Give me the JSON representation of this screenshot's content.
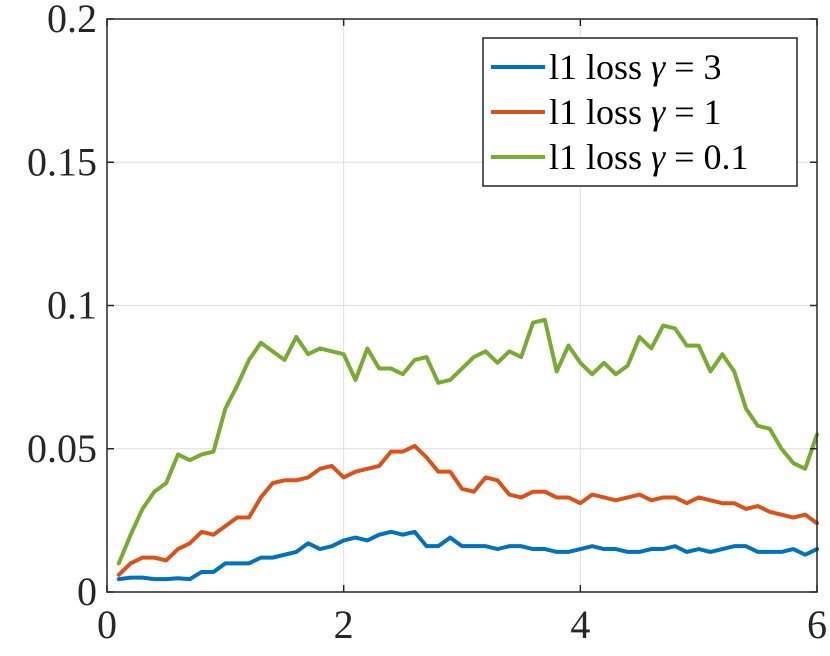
{
  "chart_data": {
    "type": "line",
    "title": "",
    "xlabel": "",
    "ylabel": "",
    "xlim": [
      0,
      6
    ],
    "ylim": [
      0,
      0.2
    ],
    "grid": true,
    "legend_position": "top-right",
    "x_ticks": [
      "0",
      "2",
      "4",
      "6"
    ],
    "y_ticks": [
      "0",
      "0.05",
      "0.1",
      "0.15",
      "0.2"
    ],
    "x": [
      0.1,
      0.2,
      0.3,
      0.4,
      0.5,
      0.6,
      0.7,
      0.8,
      0.9,
      1.0,
      1.1,
      1.2,
      1.3,
      1.4,
      1.5,
      1.6,
      1.7,
      1.8,
      1.9,
      2.0,
      2.1,
      2.2,
      2.3,
      2.4,
      2.5,
      2.6,
      2.7,
      2.8,
      2.9,
      3.0,
      3.1,
      3.2,
      3.3,
      3.4,
      3.5,
      3.6,
      3.7,
      3.8,
      3.9,
      4.0,
      4.1,
      4.2,
      4.3,
      4.4,
      4.5,
      4.6,
      4.7,
      4.8,
      4.9,
      5.0,
      5.1,
      5.2,
      5.3,
      5.4,
      5.5,
      5.6,
      5.7,
      5.8,
      5.9,
      6.0
    ],
    "series": [
      {
        "label_prefix": "l1 loss ",
        "label_symbol": "γ",
        "label_suffix": " = 3",
        "color": "#0072BD",
        "values": [
          0.0045,
          0.005,
          0.005,
          0.0045,
          0.0045,
          0.0048,
          0.0045,
          0.007,
          0.007,
          0.01,
          0.01,
          0.01,
          0.012,
          0.012,
          0.013,
          0.014,
          0.017,
          0.015,
          0.016,
          0.018,
          0.019,
          0.018,
          0.02,
          0.021,
          0.02,
          0.021,
          0.016,
          0.016,
          0.019,
          0.016,
          0.016,
          0.016,
          0.015,
          0.016,
          0.016,
          0.015,
          0.015,
          0.014,
          0.014,
          0.015,
          0.016,
          0.015,
          0.015,
          0.014,
          0.014,
          0.015,
          0.015,
          0.016,
          0.014,
          0.015,
          0.014,
          0.015,
          0.016,
          0.016,
          0.014,
          0.014,
          0.014,
          0.015,
          0.013,
          0.015
        ]
      },
      {
        "label_prefix": "l1 loss ",
        "label_symbol": "γ",
        "label_suffix": " = 1",
        "color": "#D95319",
        "values": [
          0.006,
          0.01,
          0.012,
          0.012,
          0.011,
          0.015,
          0.017,
          0.021,
          0.02,
          0.023,
          0.026,
          0.026,
          0.033,
          0.038,
          0.039,
          0.039,
          0.04,
          0.043,
          0.044,
          0.04,
          0.042,
          0.043,
          0.044,
          0.049,
          0.049,
          0.051,
          0.047,
          0.042,
          0.042,
          0.036,
          0.035,
          0.04,
          0.039,
          0.034,
          0.033,
          0.035,
          0.035,
          0.033,
          0.033,
          0.031,
          0.034,
          0.033,
          0.032,
          0.033,
          0.034,
          0.032,
          0.033,
          0.033,
          0.031,
          0.033,
          0.032,
          0.031,
          0.031,
          0.029,
          0.03,
          0.028,
          0.027,
          0.026,
          0.027,
          0.024
        ]
      },
      {
        "label_prefix": "l1 loss ",
        "label_symbol": "γ",
        "label_suffix": " = 0.1",
        "color": "#77AC30",
        "values": [
          0.01,
          0.02,
          0.029,
          0.035,
          0.038,
          0.048,
          0.046,
          0.048,
          0.049,
          0.064,
          0.072,
          0.081,
          0.087,
          0.084,
          0.081,
          0.089,
          0.083,
          0.085,
          0.084,
          0.083,
          0.074,
          0.085,
          0.078,
          0.078,
          0.076,
          0.081,
          0.082,
          0.073,
          0.074,
          0.078,
          0.082,
          0.084,
          0.08,
          0.084,
          0.082,
          0.094,
          0.095,
          0.077,
          0.086,
          0.08,
          0.076,
          0.08,
          0.076,
          0.079,
          0.089,
          0.085,
          0.093,
          0.092,
          0.086,
          0.086,
          0.077,
          0.083,
          0.077,
          0.064,
          0.058,
          0.057,
          0.05,
          0.045,
          0.043,
          0.055
        ]
      }
    ]
  }
}
